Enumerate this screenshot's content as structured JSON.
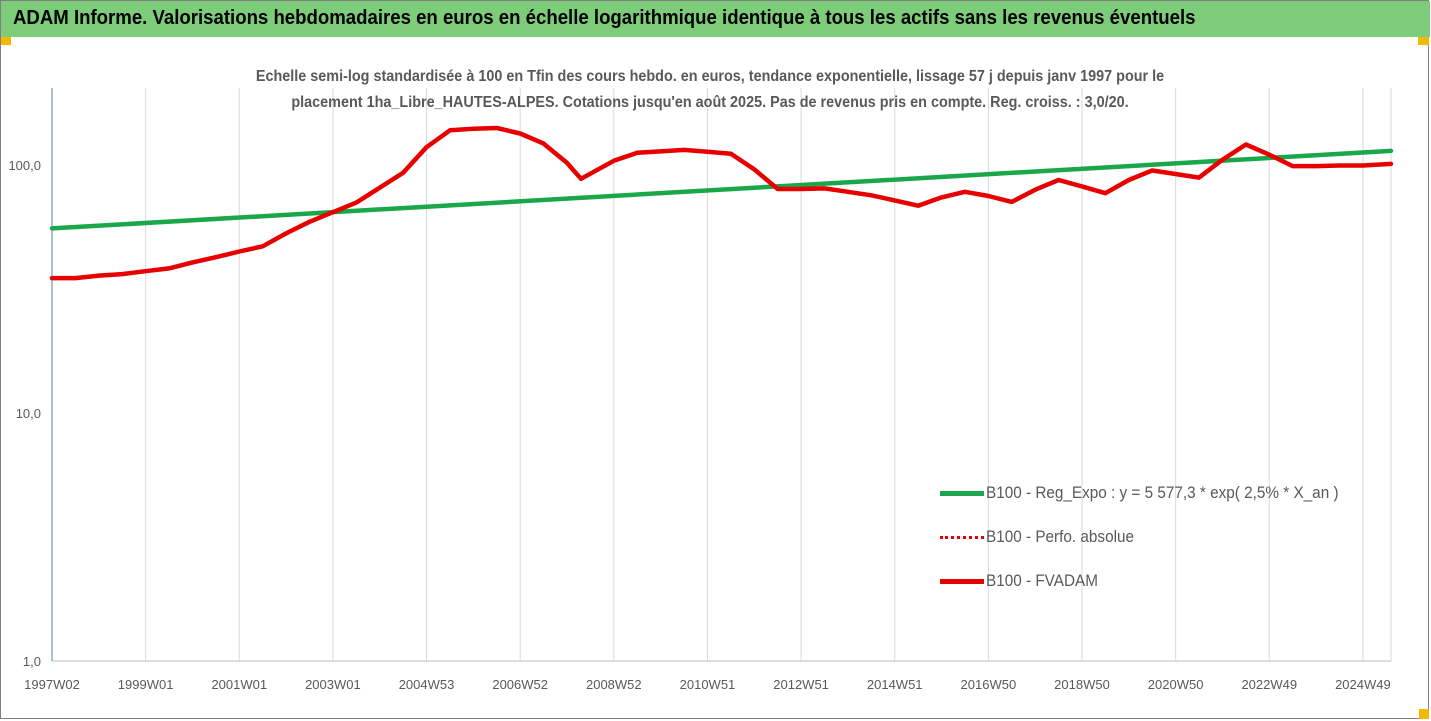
{
  "header": {
    "title": "ADAM Informe. Valorisations hebdomadaires en euros en échelle logarithmique identique à tous les actifs sans les revenus éventuels"
  },
  "colors": {
    "header_bg": "#7dcc7a",
    "accent": "#f5b800",
    "trend": "#1aa64a",
    "fvadam": "#e80000",
    "axis": "#4f81bd",
    "grid": "#d9d9d9"
  },
  "chart_data": {
    "type": "line",
    "title": "Echelle semi-log standardisée à 100 en Tfin des cours hebdo. en euros, tendance exponentielle, lissage 57 j depuis janv 1997 pour le placement 1ha_Libre_HAUTES-ALPES. Cotations jusqu'en août 2025. Pas de revenus pris en compte. Reg. croiss. : 3,0/20.",
    "title_lines": [
      "Echelle semi-log standardisée à 100 en Tfin des cours hebdo. en euros, tendance exponentielle, lissage 57 j depuis janv 1997 pour le",
      "placement 1ha_Libre_HAUTES-ALPES. Cotations jusqu'en août 2025.  Pas de revenus pris en compte.  Reg. croiss. : 3,0/20."
    ],
    "y_scale": "log",
    "ylim": [
      1,
      200
    ],
    "y_ticks": [
      {
        "value": 1,
        "label": "1,0"
      },
      {
        "value": 10,
        "label": "10,0"
      },
      {
        "value": 100,
        "label": "100,0"
      }
    ],
    "xlim": [
      1997.0,
      2025.6
    ],
    "x_ticks": [
      {
        "x": 1997.0,
        "label": "1997W02"
      },
      {
        "x": 1999.0,
        "label": "1999W01"
      },
      {
        "x": 2001.0,
        "label": "2001W01"
      },
      {
        "x": 2003.0,
        "label": "2003W01"
      },
      {
        "x": 2005.0,
        "label": "2004W53"
      },
      {
        "x": 2007.0,
        "label": "2006W52"
      },
      {
        "x": 2009.0,
        "label": "2008W52"
      },
      {
        "x": 2011.0,
        "label": "2010W51"
      },
      {
        "x": 2013.0,
        "label": "2012W51"
      },
      {
        "x": 2015.0,
        "label": "2014W51"
      },
      {
        "x": 2017.0,
        "label": "2016W50"
      },
      {
        "x": 2019.0,
        "label": "2018W50"
      },
      {
        "x": 2021.0,
        "label": "2020W50"
      },
      {
        "x": 2023.0,
        "label": "2022W49"
      },
      {
        "x": 2025.0,
        "label": "2024W49"
      }
    ],
    "grid": "vertical",
    "legend_position": "right",
    "series": [
      {
        "name": "B100 - Reg_Expo : y = 5 577,3 * exp( 2,5% *  X_an )",
        "style": "solid",
        "color": "#1aa64a",
        "points": [
          [
            1997.0,
            55.5
          ],
          [
            2025.6,
            114.0
          ]
        ]
      },
      {
        "name": "B100 - Perfo. absolue",
        "style": "dotted",
        "color": "#e80000",
        "points": []
      },
      {
        "name": "B100 - FVADAM",
        "style": "solid",
        "color": "#e80000",
        "points": [
          [
            1997.0,
            35.0
          ],
          [
            1997.5,
            35.0
          ],
          [
            1998.0,
            35.8
          ],
          [
            1998.5,
            36.3
          ],
          [
            1999.0,
            37.3
          ],
          [
            1999.5,
            38.3
          ],
          [
            2000.0,
            40.5
          ],
          [
            2000.5,
            42.5
          ],
          [
            2001.0,
            44.8
          ],
          [
            2001.5,
            47.0
          ],
          [
            2002.0,
            53.0
          ],
          [
            2002.5,
            59.0
          ],
          [
            2003.0,
            64.5
          ],
          [
            2003.5,
            70.5
          ],
          [
            2004.0,
            81.0
          ],
          [
            2004.5,
            93.0
          ],
          [
            2005.0,
            118.0
          ],
          [
            2005.5,
            138.0
          ],
          [
            2006.0,
            140.0
          ],
          [
            2006.5,
            141.0
          ],
          [
            2007.0,
            134.0
          ],
          [
            2007.5,
            122.0
          ],
          [
            2008.0,
            102.0
          ],
          [
            2008.3,
            88.0
          ],
          [
            2009.0,
            104.0
          ],
          [
            2009.5,
            112.0
          ],
          [
            2010.0,
            113.5
          ],
          [
            2010.5,
            115.0
          ],
          [
            2011.0,
            113.0
          ],
          [
            2011.5,
            111.0
          ],
          [
            2012.0,
            96.0
          ],
          [
            2012.5,
            80.0
          ],
          [
            2013.0,
            80.0
          ],
          [
            2013.5,
            80.5
          ],
          [
            2014.0,
            78.0
          ],
          [
            2014.5,
            75.5
          ],
          [
            2015.0,
            72.0
          ],
          [
            2015.5,
            68.5
          ],
          [
            2016.0,
            74.0
          ],
          [
            2016.5,
            78.0
          ],
          [
            2017.0,
            75.0
          ],
          [
            2017.5,
            71.0
          ],
          [
            2018.0,
            79.5
          ],
          [
            2018.5,
            87.0
          ],
          [
            2019.0,
            82.0
          ],
          [
            2019.5,
            77.0
          ],
          [
            2020.0,
            87.0
          ],
          [
            2020.5,
            95.0
          ],
          [
            2021.0,
            92.0
          ],
          [
            2021.5,
            89.0
          ],
          [
            2022.0,
            105.0
          ],
          [
            2022.5,
            121.0
          ],
          [
            2023.0,
            110.0
          ],
          [
            2023.5,
            99.0
          ],
          [
            2024.0,
            99.0
          ],
          [
            2024.5,
            99.5
          ],
          [
            2025.0,
            99.5
          ],
          [
            2025.6,
            101.0
          ]
        ]
      }
    ]
  }
}
